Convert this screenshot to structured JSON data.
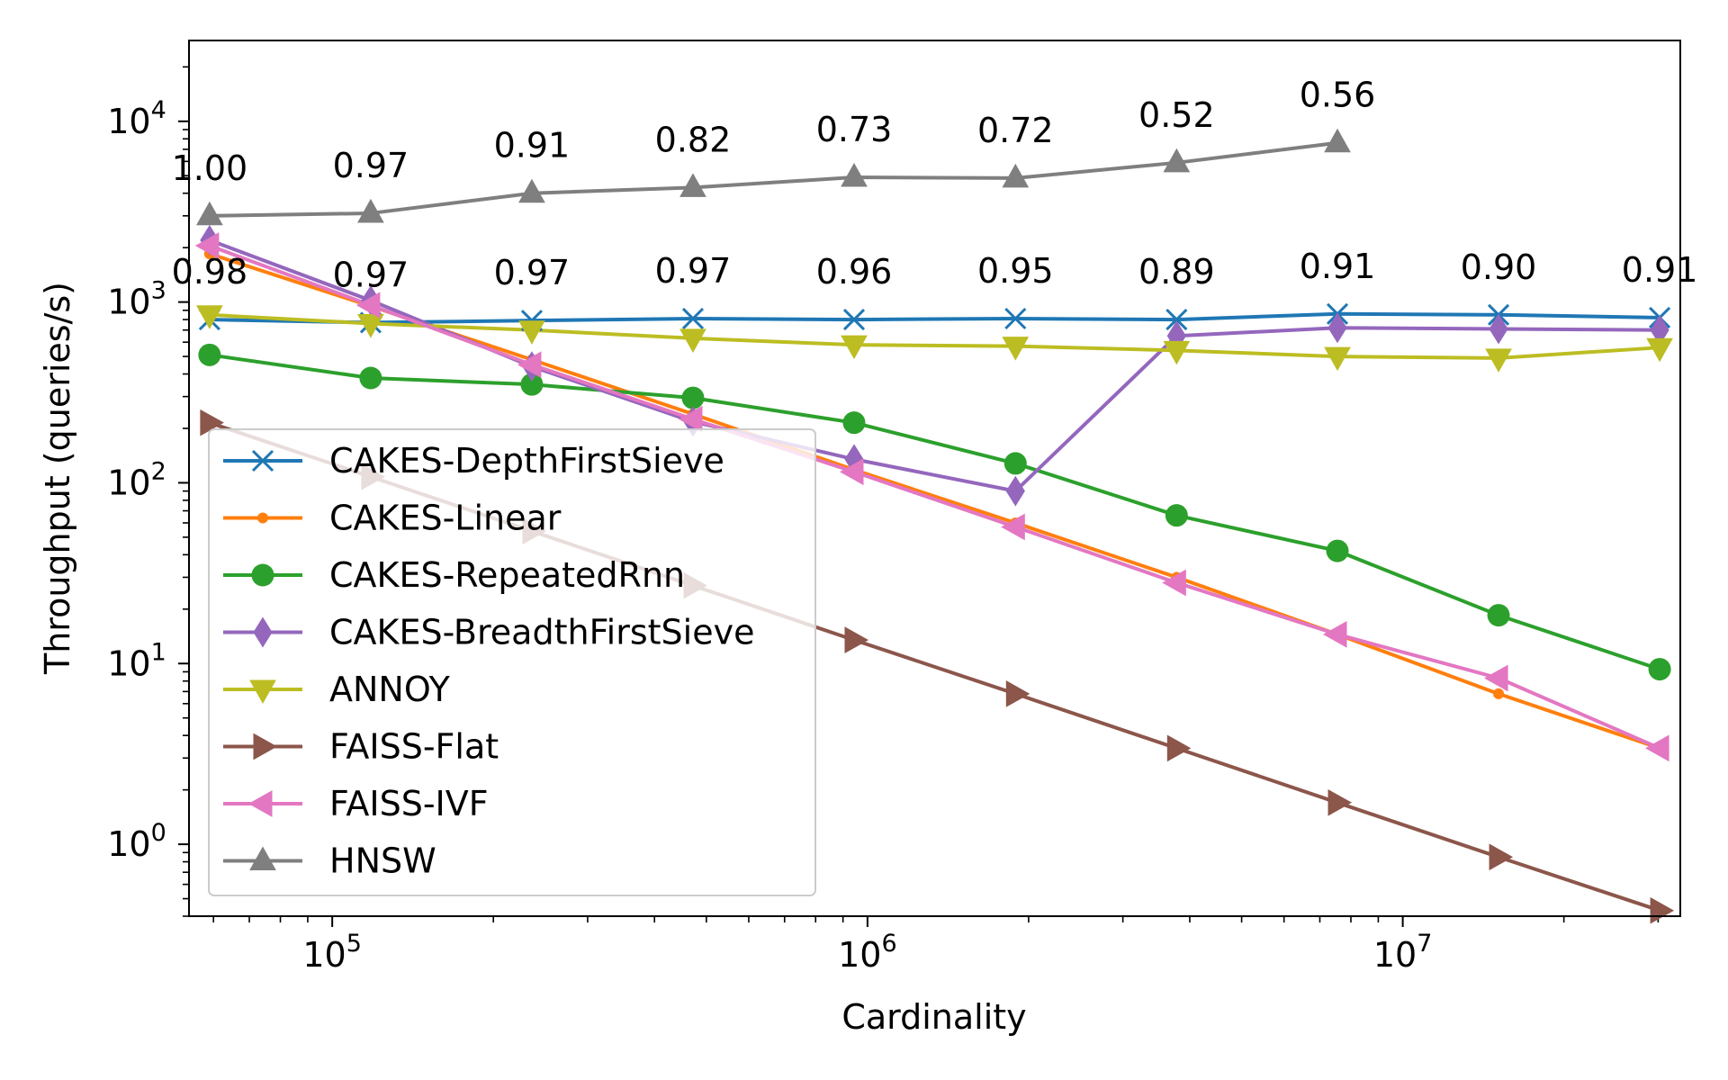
{
  "chart_data": {
    "type": "line",
    "title": "",
    "xlabel": "Cardinality",
    "ylabel": "Throughput (queries/s)",
    "xscale": "log",
    "yscale": "log",
    "xlim": [
      54000,
      33000000
    ],
    "ylim": [
      0.4,
      28000
    ],
    "legend_position": "lower-left",
    "x_ticks": [
      {
        "value": 100000,
        "base": "10",
        "exp": "5"
      },
      {
        "value": 1000000,
        "base": "10",
        "exp": "6"
      },
      {
        "value": 10000000,
        "base": "10",
        "exp": "7"
      }
    ],
    "y_ticks": [
      {
        "value": 1,
        "base": "10",
        "exp": "0"
      },
      {
        "value": 10,
        "base": "10",
        "exp": "1"
      },
      {
        "value": 100,
        "base": "10",
        "exp": "2"
      },
      {
        "value": 1000,
        "base": "10",
        "exp": "3"
      },
      {
        "value": 10000,
        "base": "10",
        "exp": "4"
      }
    ],
    "x": [
      59000,
      118000,
      236000,
      472000,
      944000,
      1890000,
      3780000,
      7550000,
      15100000,
      30200000
    ],
    "series": [
      {
        "name": "CAKES-DepthFirstSieve",
        "color": "#1f77b4",
        "marker": "x",
        "values": [
          800,
          770,
          790,
          810,
          800,
          810,
          800,
          860,
          850,
          820
        ]
      },
      {
        "name": "CAKES-Linear",
        "color": "#ff7f0e",
        "marker": "point",
        "values": [
          1850,
          950,
          480,
          240,
          118,
          60,
          30,
          14.5,
          6.8,
          3.4
        ]
      },
      {
        "name": "CAKES-RepeatedRnn",
        "color": "#2ca02c",
        "marker": "circle",
        "values": [
          510,
          380,
          350,
          295,
          215,
          128,
          66,
          42,
          18.5,
          9.3
        ]
      },
      {
        "name": "CAKES-BreadthFirstSieve",
        "color": "#9467bd",
        "marker": "thin-diamond",
        "values": [
          2200,
          1020,
          440,
          218,
          135,
          90,
          650,
          720,
          710,
          700
        ]
      },
      {
        "name": "ANNOY",
        "color": "#bcbd22",
        "marker": "triangle-down",
        "values": [
          850,
          760,
          700,
          630,
          580,
          570,
          540,
          500,
          490,
          560
        ]
      },
      {
        "name": "FAISS-Flat",
        "color": "#8c564b",
        "marker": "triangle-right",
        "values": [
          215,
          108,
          54,
          27,
          13.5,
          6.8,
          3.4,
          1.7,
          0.85,
          0.43
        ]
      },
      {
        "name": "FAISS-IVF",
        "color": "#e377c2",
        "marker": "triangle-left",
        "values": [
          2050,
          960,
          450,
          225,
          115,
          57,
          28,
          14.5,
          8.3,
          3.4
        ]
      },
      {
        "name": "HNSW",
        "color": "#7f7f7f",
        "marker": "triangle-up",
        "values": [
          3000,
          3100,
          4000,
          4300,
          4900,
          4850,
          5900,
          7600,
          null,
          null
        ]
      }
    ],
    "annotations": [
      {
        "series": "HNSW",
        "labels": [
          "1.00",
          "0.97",
          "0.91",
          "0.82",
          "0.73",
          "0.72",
          "0.52",
          "0.56"
        ]
      },
      {
        "series": "CAKES-DepthFirstSieve",
        "labels": [
          "0.98",
          "0.97",
          "0.97",
          "0.97",
          "0.96",
          "0.95",
          "0.89",
          "0.91",
          "0.90",
          "0.91"
        ]
      }
    ]
  }
}
